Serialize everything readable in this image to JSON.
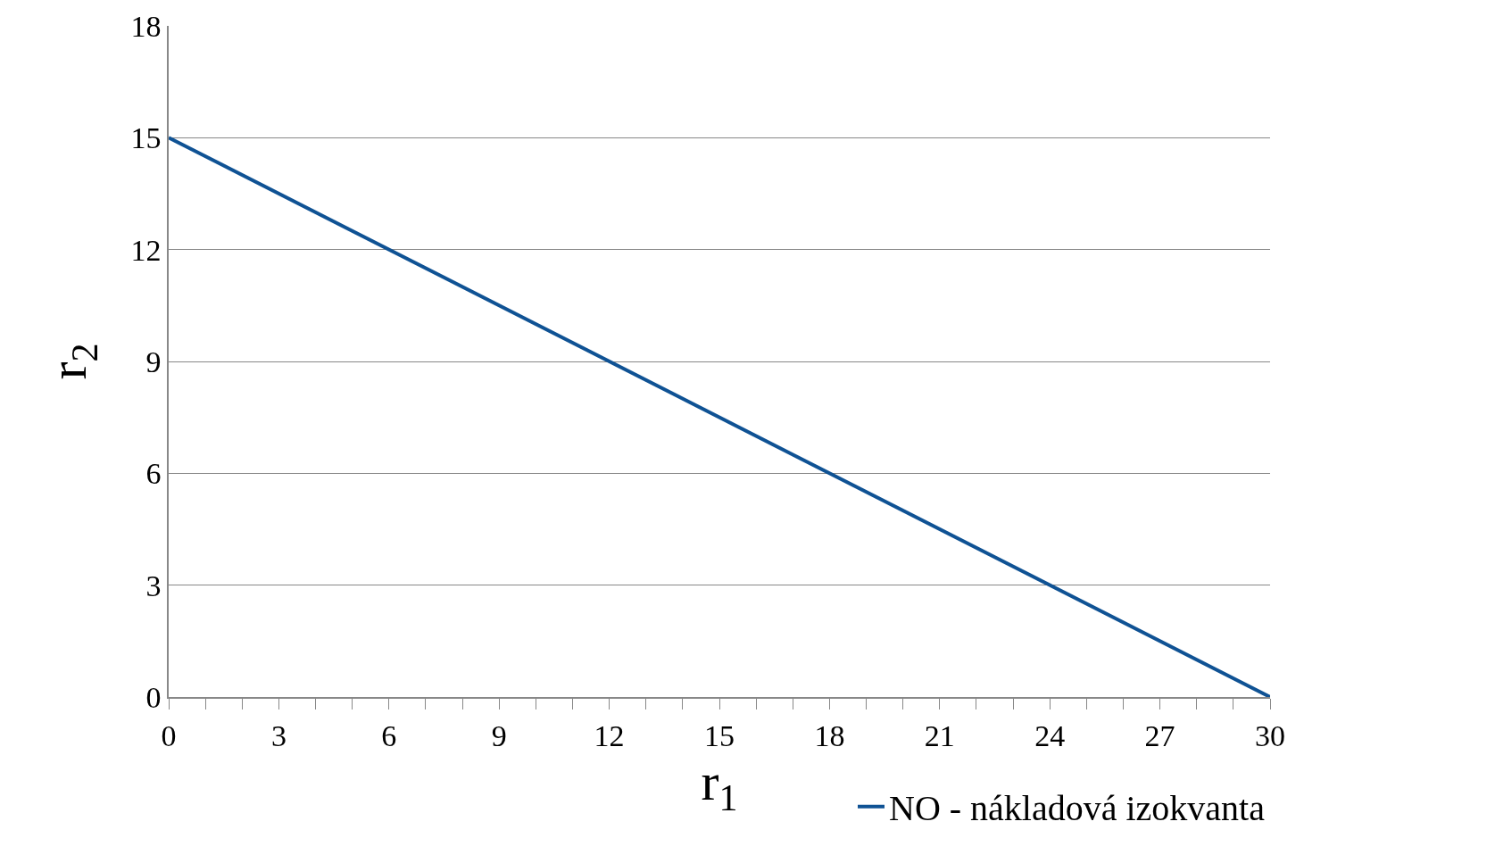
{
  "chart_data": {
    "type": "line",
    "xlabel": "r$_{1}$",
    "ylabel": "r$_{2}$",
    "x": [
      0,
      30
    ],
    "series": [
      {
        "name": "NO - nákladová izokvanta",
        "color": "#0f5294",
        "values": [
          15,
          0
        ]
      }
    ],
    "xlim": [
      0,
      30
    ],
    "xticks": [
      0,
      {
        "value": 1,
        "label": null
      },
      {
        "value": 2,
        "label": null
      },
      3,
      {
        "value": 4,
        "label": null
      },
      {
        "value": 5,
        "label": null
      },
      6,
      {
        "value": 7,
        "label": null
      },
      {
        "value": 8,
        "label": null
      },
      9,
      {
        "value": 10,
        "label": null
      },
      {
        "value": 11,
        "label": null
      },
      12,
      {
        "value": 13,
        "label": null
      },
      {
        "value": 14,
        "label": null
      },
      15,
      {
        "value": 16,
        "label": null
      },
      {
        "value": 17,
        "label": null
      },
      18,
      {
        "value": 19,
        "label": null
      },
      {
        "value": 20,
        "label": null
      },
      21,
      {
        "value": 22,
        "label": null
      },
      {
        "value": 23,
        "label": null
      },
      24,
      {
        "value": 25,
        "label": null
      },
      {
        "value": 26,
        "label": null
      },
      27,
      {
        "value": 28,
        "label": null
      },
      {
        "value": 29,
        "label": null
      },
      30
    ],
    "ylim": [
      0,
      18
    ],
    "yticks": [
      0,
      3,
      6,
      9,
      12,
      15,
      18
    ],
    "grid": "y",
    "legend": "bottom right",
    "marker": "none",
    "line_style": "solid"
  }
}
